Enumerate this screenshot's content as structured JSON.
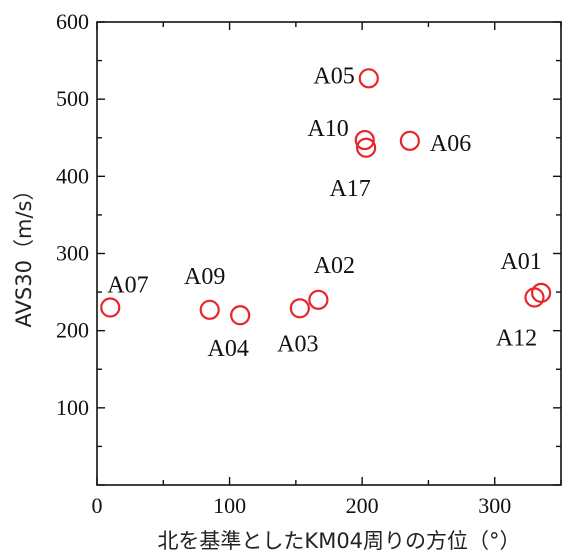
{
  "chart_data": {
    "type": "scatter",
    "xlabel": "北を基準としたKM04周りの方位（°）",
    "ylabel": "AVS30（m/s）",
    "xlim": [
      0,
      350
    ],
    "ylim": [
      0,
      600
    ],
    "x_ticks": [
      0,
      100,
      200,
      300
    ],
    "y_ticks": [
      100,
      200,
      300,
      400,
      500,
      600
    ],
    "grid": false,
    "marker": "open-circle",
    "marker_color": "#e8262a",
    "points": [
      {
        "label": "A07",
        "x": 10,
        "y": 230
      },
      {
        "label": "A09",
        "x": 85,
        "y": 227
      },
      {
        "label": "A04",
        "x": 108,
        "y": 220
      },
      {
        "label": "A03",
        "x": 153,
        "y": 229
      },
      {
        "label": "A02",
        "x": 167,
        "y": 240
      },
      {
        "label": "A05",
        "x": 205,
        "y": 527
      },
      {
        "label": "A10",
        "x": 202,
        "y": 447
      },
      {
        "label": "A17",
        "x": 203,
        "y": 437
      },
      {
        "label": "A06",
        "x": 236,
        "y": 446
      },
      {
        "label": "A01",
        "x": 335,
        "y": 249
      },
      {
        "label": "A12",
        "x": 330,
        "y": 243
      }
    ]
  }
}
